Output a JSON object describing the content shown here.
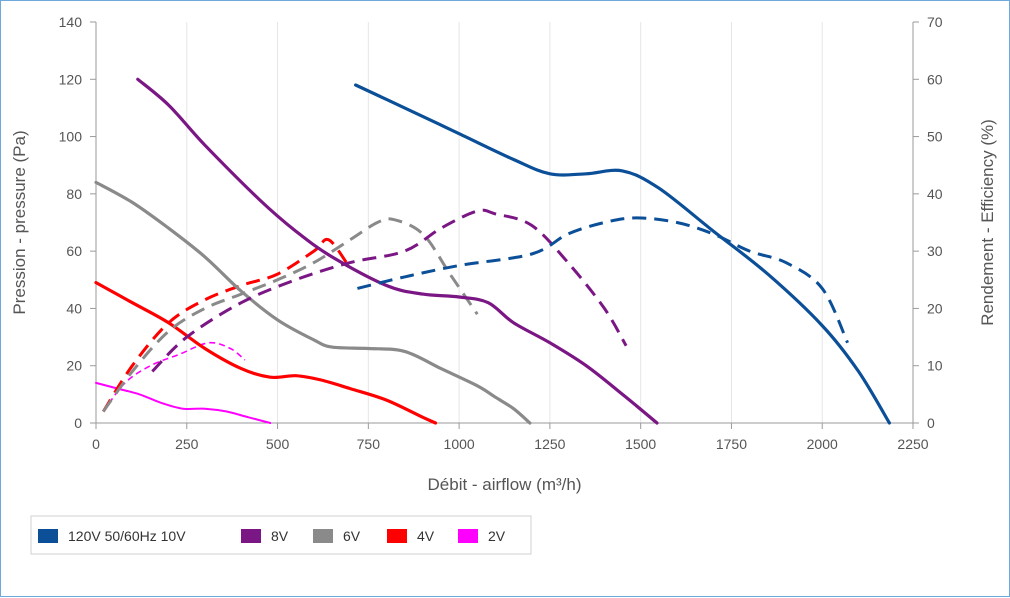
{
  "chart_data": {
    "type": "line",
    "xlabel": "Débit - airflow (m³/h)",
    "ylabel": "Pression - pressure (Pa)",
    "y2label": "Rendement - Efficiency (%)",
    "xlim": [
      0,
      2250
    ],
    "ylim": [
      0,
      140
    ],
    "y2lim": [
      0,
      70
    ],
    "xticks": [
      "0",
      "250",
      "500",
      "750",
      "1000",
      "1250",
      "1500",
      "1750",
      "2000",
      "2250"
    ],
    "yticks": [
      "0",
      "20",
      "40",
      "60",
      "80",
      "100",
      "120",
      "140"
    ],
    "y2ticks": [
      "0",
      "10",
      "20",
      "30",
      "40",
      "50",
      "60",
      "70"
    ],
    "grid": "vertical",
    "legend_position": "bottom-left",
    "series": [
      {
        "name": "120V 50/60Hz 10V",
        "color": "#0b4f98",
        "pressure": [
          [
            715,
            118
          ],
          [
            850,
            110
          ],
          [
            1000,
            101
          ],
          [
            1150,
            92
          ],
          [
            1250,
            87
          ],
          [
            1350,
            87
          ],
          [
            1450,
            88
          ],
          [
            1550,
            82
          ],
          [
            1700,
            67
          ],
          [
            1850,
            52
          ],
          [
            2000,
            34
          ],
          [
            2100,
            18
          ],
          [
            2185,
            0
          ]
        ],
        "efficiency": [
          [
            720,
            23.5
          ],
          [
            850,
            25.5
          ],
          [
            1000,
            27.5
          ],
          [
            1200,
            29.5
          ],
          [
            1300,
            33
          ],
          [
            1400,
            35
          ],
          [
            1490,
            35.8
          ],
          [
            1600,
            35
          ],
          [
            1700,
            33
          ],
          [
            1800,
            30
          ],
          [
            1900,
            28
          ],
          [
            2000,
            23.5
          ],
          [
            2070,
            14
          ]
        ]
      },
      {
        "name": "8V",
        "color": "#7b1685",
        "pressure": [
          [
            115,
            120
          ],
          [
            200,
            111
          ],
          [
            300,
            97
          ],
          [
            450,
            78
          ],
          [
            550,
            67
          ],
          [
            650,
            58
          ],
          [
            800,
            48
          ],
          [
            900,
            45
          ],
          [
            1000,
            44
          ],
          [
            1080,
            42
          ],
          [
            1150,
            35
          ],
          [
            1250,
            28
          ],
          [
            1350,
            20
          ],
          [
            1450,
            10
          ],
          [
            1545,
            0
          ]
        ],
        "efficiency": [
          [
            155,
            9
          ],
          [
            250,
            15
          ],
          [
            400,
            21
          ],
          [
            550,
            25
          ],
          [
            700,
            28
          ],
          [
            850,
            30
          ],
          [
            950,
            34
          ],
          [
            1050,
            37
          ],
          [
            1100,
            36.5
          ],
          [
            1200,
            34.5
          ],
          [
            1300,
            28
          ],
          [
            1400,
            20
          ],
          [
            1460,
            13.5
          ]
        ]
      },
      {
        "name": "6V",
        "color": "#8a8a8a",
        "pressure": [
          [
            0,
            84
          ],
          [
            100,
            77
          ],
          [
            200,
            68
          ],
          [
            300,
            58
          ],
          [
            400,
            46
          ],
          [
            500,
            36
          ],
          [
            600,
            29
          ],
          [
            650,
            26.5
          ],
          [
            750,
            26
          ],
          [
            850,
            25
          ],
          [
            950,
            19
          ],
          [
            1050,
            13
          ],
          [
            1100,
            9
          ],
          [
            1150,
            5
          ],
          [
            1195,
            0
          ]
        ],
        "efficiency": [
          [
            20,
            2
          ],
          [
            100,
            9
          ],
          [
            200,
            16
          ],
          [
            300,
            20
          ],
          [
            400,
            22.5
          ],
          [
            500,
            25
          ],
          [
            600,
            28
          ],
          [
            700,
            32
          ],
          [
            775,
            35
          ],
          [
            820,
            35.5
          ],
          [
            900,
            33
          ],
          [
            975,
            26
          ],
          [
            1050,
            19
          ]
        ]
      },
      {
        "name": "4V",
        "color": "#ff0000",
        "pressure": [
          [
            0,
            49
          ],
          [
            100,
            42
          ],
          [
            200,
            35
          ],
          [
            300,
            26
          ],
          [
            400,
            19
          ],
          [
            480,
            16
          ],
          [
            550,
            16.5
          ],
          [
            620,
            15
          ],
          [
            700,
            12
          ],
          [
            800,
            8
          ],
          [
            900,
            2
          ],
          [
            935,
            0
          ]
        ],
        "efficiency": [
          [
            20,
            2
          ],
          [
            100,
            10
          ],
          [
            200,
            17.5
          ],
          [
            300,
            21.5
          ],
          [
            400,
            24
          ],
          [
            500,
            26
          ],
          [
            600,
            30
          ],
          [
            640,
            32
          ],
          [
            690,
            28
          ]
        ]
      },
      {
        "name": "2V",
        "color": "#ff00ff",
        "pressure": [
          [
            0,
            14
          ],
          [
            60,
            12
          ],
          [
            120,
            10
          ],
          [
            180,
            7
          ],
          [
            240,
            5
          ],
          [
            300,
            5
          ],
          [
            360,
            4
          ],
          [
            420,
            2
          ],
          [
            480,
            0
          ]
        ],
        "efficiency": [
          [
            20,
            2
          ],
          [
            80,
            7
          ],
          [
            150,
            10
          ],
          [
            230,
            12
          ],
          [
            310,
            14
          ],
          [
            370,
            13
          ],
          [
            410,
            11
          ]
        ]
      }
    ]
  }
}
